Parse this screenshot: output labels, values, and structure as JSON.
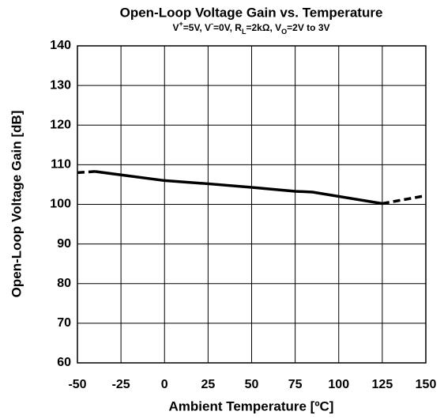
{
  "chart_data": {
    "type": "line",
    "title": "Open-Loop Voltage Gain vs. Temperature",
    "subtitle_parts": [
      {
        "text": "V"
      },
      {
        "text": "+",
        "shift": "sup"
      },
      {
        "text": "=5V, V"
      },
      {
        "text": "-",
        "shift": "sup"
      },
      {
        "text": "=0V, R"
      },
      {
        "text": "L",
        "shift": "sub"
      },
      {
        "text": "=2kΩ, V"
      },
      {
        "text": "O",
        "shift": "sub"
      },
      {
        "text": "=2V to 3V"
      }
    ],
    "x_label": "Ambient Temperature [ºC]",
    "y_label": "Open-Loop Voltage Gain [dB]",
    "x": [
      -50,
      -40,
      0,
      25,
      50,
      75,
      85,
      125,
      150
    ],
    "series": [
      {
        "color": "#000000",
        "dashed": false,
        "values": [
          null,
          108.3,
          106,
          105.2,
          104.3,
          103.3,
          103.1,
          100.2,
          null
        ]
      },
      {
        "color": "#000000",
        "dashed": true,
        "values": [
          108,
          108.3,
          null,
          null,
          null,
          null,
          null,
          100.2,
          102.2
        ]
      }
    ],
    "xlim": [
      -50,
      150
    ],
    "xticks": [
      -50,
      -25,
      0,
      25,
      50,
      75,
      100,
      125,
      150
    ],
    "ylim": [
      60,
      140
    ],
    "yticks": [
      60,
      70,
      80,
      90,
      100,
      110,
      120,
      130,
      140
    ],
    "grid": true
  }
}
